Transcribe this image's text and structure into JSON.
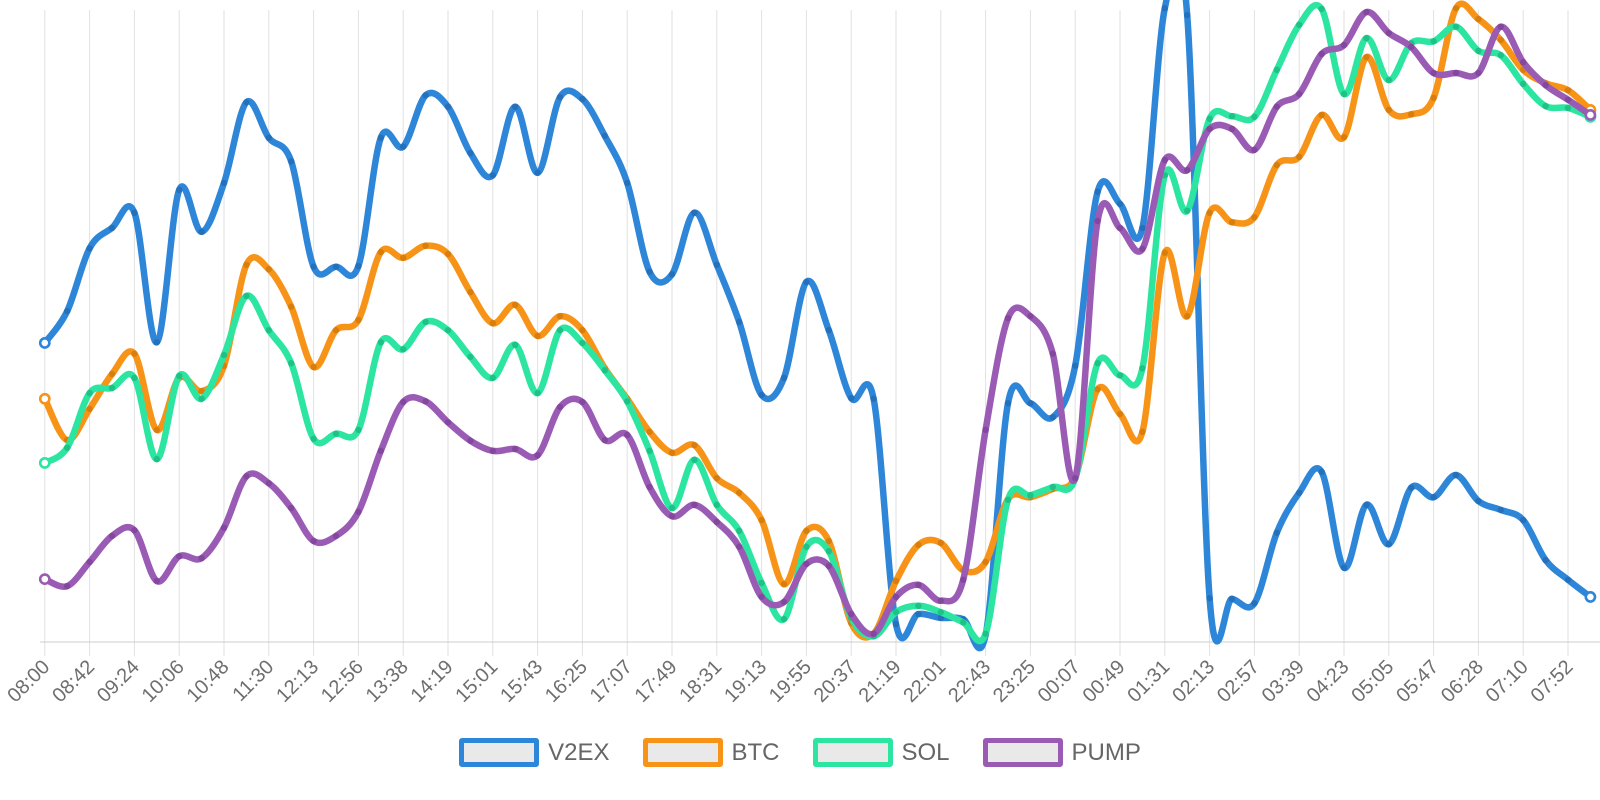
{
  "chart_data": {
    "type": "line",
    "smooth": true,
    "title": "",
    "x_axis": {
      "tick_labels": [
        "08:00",
        "08:42",
        "09:24",
        "10:06",
        "10:48",
        "11:30",
        "12:13",
        "12:56",
        "13:38",
        "14:19",
        "15:01",
        "15:43",
        "16:25",
        "17:07",
        "17:49",
        "18:31",
        "19:13",
        "19:55",
        "20:37",
        "21:19",
        "22:01",
        "22:43",
        "23:25",
        "00:07",
        "00:49",
        "01:31",
        "02:13",
        "02:57",
        "03:39",
        "04:23",
        "05:05",
        "05:47",
        "06:28",
        "07:10",
        "07:52"
      ],
      "rotation": 45,
      "points_per_tick": 2
    },
    "y_axis": {
      "visible": false,
      "range": [
        0,
        100
      ]
    },
    "grid": {
      "vertical_lines": true,
      "horizontal_lines": false
    },
    "legend": {
      "position": "bottom",
      "items": [
        "V2EX",
        "BTC",
        "SOL",
        "PUMP"
      ]
    },
    "series": [
      {
        "name": "V2EX",
        "color": "#2e86d8",
        "dot_color": "#2570ba",
        "values": [
          47.1,
          52.1,
          62.0,
          65.2,
          67.6,
          47.2,
          71.2,
          64.6,
          72.3,
          85.0,
          79.4,
          75.7,
          59.1,
          59.1,
          59.2,
          79.4,
          78.0,
          86.1,
          84.3,
          77.0,
          73.5,
          84.3,
          73.9,
          85.8,
          85.5,
          79.7,
          72.3,
          58.3,
          57.9,
          67.6,
          59.4,
          50.4,
          38.9,
          41.6,
          56.7,
          49.1,
          38.4,
          38.3,
          2.8,
          4.4,
          3.8,
          3.6,
          1.1,
          37.6,
          37.6,
          35.4,
          43.5,
          70.9,
          69.0,
          65.2,
          99.8,
          98.7,
          6.9,
          6.8,
          6.1,
          17.2,
          23.5,
          26.8,
          11.7,
          21.6,
          15.4,
          24.3,
          22.8,
          26.3,
          22.2,
          20.8,
          19.2,
          12.9,
          9.8,
          7.1
        ]
      },
      {
        "name": "BTC",
        "color": "#f79418",
        "dot_color": "#d87e0d",
        "values": [
          38.3,
          31.8,
          36.7,
          42.2,
          45.4,
          33.4,
          41.6,
          39.5,
          43.5,
          59.4,
          58.7,
          52.8,
          43.3,
          49.1,
          50.7,
          61.4,
          60.5,
          62.4,
          61.1,
          55.1,
          50.2,
          53.1,
          48.2,
          51.3,
          49.1,
          43.1,
          38.3,
          33.1,
          29.8,
          31.0,
          25.8,
          23.5,
          19.2,
          9.1,
          17.5,
          15.9,
          3.0,
          1.3,
          9.6,
          15.3,
          15.6,
          11.3,
          12.6,
          22.5,
          22.8,
          24.1,
          26.0,
          39.8,
          35.9,
          33.1,
          61.3,
          51.3,
          67.6,
          66.1,
          66.9,
          75.1,
          76.4,
          83.0,
          79.5,
          92.1,
          83.8,
          83.1,
          85.7,
          99.8,
          98.1,
          94.8,
          90.1,
          88.0,
          86.9,
          83.8
        ]
      },
      {
        "name": "SOL",
        "color": "#2be5a0",
        "dot_color": "#1fc286",
        "values": [
          28.2,
          30.6,
          39.2,
          40.0,
          41.6,
          28.8,
          41.9,
          38.3,
          45.2,
          54.5,
          49.1,
          43.9,
          32.0,
          32.8,
          33.4,
          47.2,
          46.1,
          50.4,
          49.1,
          44.9,
          41.6,
          46.8,
          39.2,
          49.1,
          47.1,
          42.8,
          37.9,
          30.1,
          21.1,
          28.7,
          21.6,
          17.5,
          9.3,
          3.6,
          15.0,
          14.3,
          3.8,
          0.9,
          4.7,
          5.7,
          4.7,
          3.1,
          1.3,
          22.4,
          23.1,
          24.4,
          25.7,
          43.9,
          42.0,
          43.1,
          73.5,
          67.9,
          82.4,
          82.8,
          82.7,
          90.1,
          97.2,
          99.7,
          86.3,
          95.1,
          88.5,
          94.3,
          94.6,
          96.9,
          93.1,
          92.4,
          87.9,
          84.4,
          84.1,
          82.7
        ]
      },
      {
        "name": "PUMP",
        "color": "#9a5bb5",
        "dot_color": "#83489d",
        "values": [
          9.9,
          8.8,
          12.6,
          16.7,
          17.6,
          9.6,
          13.5,
          13.2,
          18.0,
          26.1,
          25.0,
          21.1,
          15.9,
          16.7,
          20.5,
          30.1,
          37.8,
          37.9,
          34.6,
          31.7,
          30.1,
          30.4,
          29.4,
          37.0,
          37.8,
          31.8,
          32.6,
          24.4,
          19.8,
          21.6,
          18.9,
          15.0,
          7.1,
          6.3,
          12.3,
          12.0,
          4.4,
          1.3,
          7.1,
          9.0,
          6.5,
          9.8,
          33.4,
          51.0,
          51.3,
          45.4,
          25.8,
          66.3,
          65.2,
          61.9,
          75.9,
          74.3,
          80.8,
          80.8,
          77.5,
          84.3,
          86.3,
          92.6,
          94.0,
          99.2,
          95.9,
          93.7,
          89.6,
          89.6,
          89.6,
          96.9,
          91.3,
          87.7,
          85.4,
          83.0
        ]
      }
    ]
  },
  "style": {
    "grid_line_color": "#e2e2e2",
    "axis_line_color": "#cccccc",
    "tick_label_color": "#6e6e6e",
    "legend_label_color": "#666666",
    "legend_swatch_fill": "#e9e9e9",
    "line_width": 6.5
  }
}
